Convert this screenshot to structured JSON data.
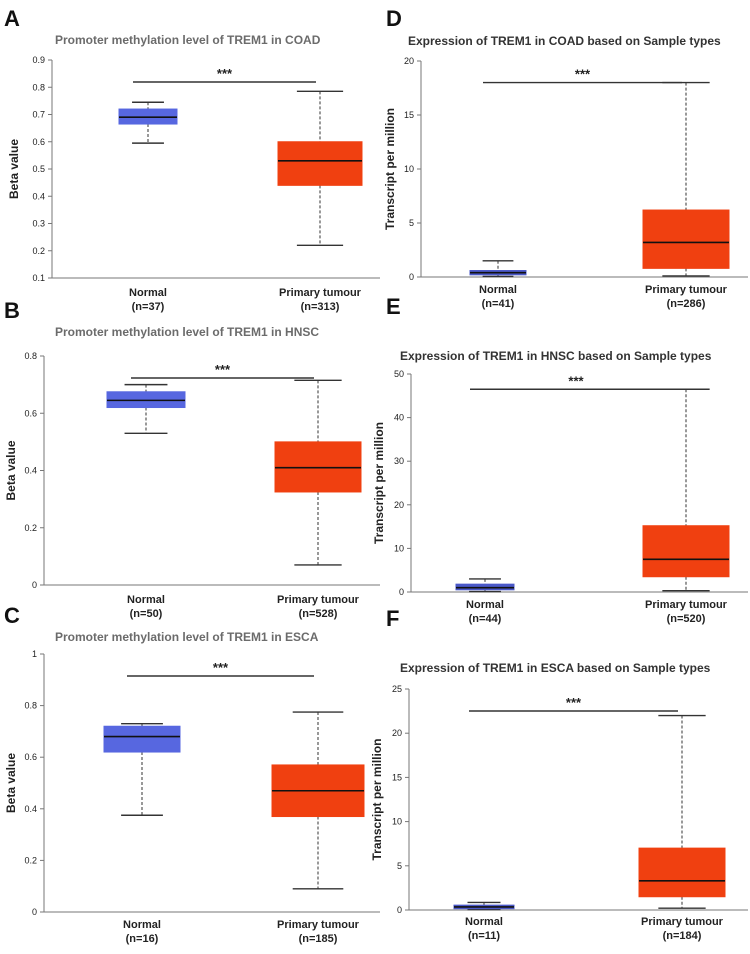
{
  "panels": [
    {
      "letter": "A",
      "chart_data": {
        "type": "box",
        "title": "Promoter methylation level of TREM1 in COAD",
        "ylabel": "Beta value",
        "ylim": [
          0.1,
          0.9
        ],
        "yticks": [
          "0.1",
          "0.2",
          "0.3",
          "0.4",
          "0.5",
          "0.6",
          "0.7",
          "0.8",
          "0.9"
        ],
        "categories": [
          "Normal",
          "Primary tumour"
        ],
        "counts": [
          "(n=37)",
          "(n=313)"
        ],
        "boxes": [
          {
            "min": 0.595,
            "q1": 0.665,
            "median": 0.69,
            "q3": 0.72,
            "max": 0.745,
            "color": "#5767e0"
          },
          {
            "min": 0.22,
            "q1": 0.44,
            "median": 0.53,
            "q3": 0.6,
            "max": 0.785,
            "color": "#f04010"
          }
        ],
        "significance": "***"
      }
    },
    {
      "letter": "B",
      "chart_data": {
        "type": "box",
        "title": "Promoter methylation level of TREM1 in HNSC",
        "ylabel": "Beta value",
        "ylim": [
          0,
          0.8
        ],
        "yticks": [
          "0",
          "0.2",
          "0.4",
          "0.6",
          "0.8"
        ],
        "categories": [
          "Normal",
          "Primary tumour"
        ],
        "counts": [
          "(n=50)",
          "(n=528)"
        ],
        "boxes": [
          {
            "min": 0.53,
            "q1": 0.62,
            "median": 0.645,
            "q3": 0.675,
            "max": 0.7,
            "color": "#5767e0"
          },
          {
            "min": 0.07,
            "q1": 0.325,
            "median": 0.41,
            "q3": 0.5,
            "max": 0.715,
            "color": "#f04010"
          }
        ],
        "significance": "***"
      }
    },
    {
      "letter": "C",
      "chart_data": {
        "type": "box",
        "title": "Promoter methylation level of TREM1 in ESCA",
        "ylabel": "Beta value",
        "ylim": [
          0,
          1
        ],
        "yticks": [
          "0",
          "0.2",
          "0.4",
          "0.6",
          "0.8",
          "1"
        ],
        "categories": [
          "Normal",
          "Primary tumour"
        ],
        "counts": [
          "(n=16)",
          "(n=185)"
        ],
        "boxes": [
          {
            "min": 0.375,
            "q1": 0.62,
            "median": 0.68,
            "q3": 0.72,
            "max": 0.73,
            "color": "#5767e0"
          },
          {
            "min": 0.09,
            "q1": 0.37,
            "median": 0.47,
            "q3": 0.57,
            "max": 0.775,
            "color": "#f04010"
          }
        ],
        "significance": "***"
      }
    },
    {
      "letter": "D",
      "chart_data": {
        "type": "box",
        "title": "Expression of TREM1 in COAD based on Sample types",
        "ylabel": "Transcript per million",
        "ylim": [
          0,
          20
        ],
        "yticks": [
          "0",
          "5",
          "10",
          "15",
          "20"
        ],
        "categories": [
          "Normal",
          "Primary tumour"
        ],
        "counts": [
          "(n=41)",
          "(n=286)"
        ],
        "boxes": [
          {
            "min": 0.05,
            "q1": 0.2,
            "median": 0.4,
            "q3": 0.6,
            "max": 1.5,
            "color": "#4a58c8"
          },
          {
            "min": 0.1,
            "q1": 0.8,
            "median": 3.2,
            "q3": 6.2,
            "max": 18.0,
            "color": "#f04010"
          }
        ],
        "significance": "***"
      }
    },
    {
      "letter": "E",
      "chart_data": {
        "type": "box",
        "title": "Expression of TREM1 in HNSC based on Sample types",
        "ylabel": "Transcript per million",
        "ylim": [
          0,
          50
        ],
        "yticks": [
          "0",
          "10",
          "20",
          "30",
          "40",
          "50"
        ],
        "categories": [
          "Normal",
          "Primary tumour"
        ],
        "counts": [
          "(n=44)",
          "(n=520)"
        ],
        "boxes": [
          {
            "min": 0.1,
            "q1": 0.5,
            "median": 1.0,
            "q3": 1.8,
            "max": 3.0,
            "color": "#4a58c8"
          },
          {
            "min": 0.3,
            "q1": 3.5,
            "median": 7.5,
            "q3": 15.2,
            "max": 46.5,
            "color": "#f04010"
          }
        ],
        "significance": "***"
      }
    },
    {
      "letter": "F",
      "chart_data": {
        "type": "box",
        "title": "Expression of TREM1 in ESCA based on Sample types",
        "ylabel": "Transcript per million",
        "ylim": [
          0,
          25
        ],
        "yticks": [
          "0",
          "5",
          "10",
          "15",
          "20",
          "25"
        ],
        "categories": [
          "Normal",
          "Primary tumour"
        ],
        "counts": [
          "(n=11)",
          "(n=184)"
        ],
        "boxes": [
          {
            "min": 0.05,
            "q1": 0.15,
            "median": 0.35,
            "q3": 0.55,
            "max": 0.85,
            "color": "#4a58c8"
          },
          {
            "min": 0.2,
            "q1": 1.5,
            "median": 3.3,
            "q3": 7.0,
            "max": 22.0,
            "color": "#f04010"
          }
        ],
        "significance": "***"
      }
    }
  ]
}
